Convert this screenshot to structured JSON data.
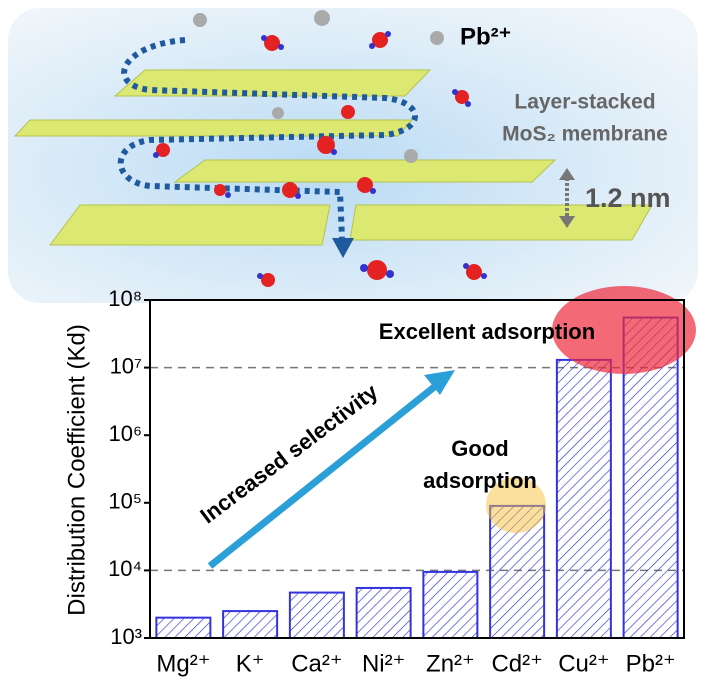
{
  "illustration": {
    "ion": "Pb²⁺",
    "membrane_line1": "Layer-stacked",
    "membrane_line2": "MoS₂ membrane",
    "spacing": "1.2 nm"
  },
  "chart_data": {
    "type": "bar",
    "y_label": "Distribution Coefficient (Kd)",
    "categories": [
      "Mg²⁺",
      "K⁺",
      "Ca²⁺",
      "Ni²⁺",
      "Zn²⁺",
      "Cd²⁺",
      "Cu²⁺",
      "Pb²⁺"
    ],
    "values": [
      2000,
      2500,
      4700,
      5500,
      9500,
      90000,
      13000000,
      55000000
    ],
    "color": "#3333dd",
    "log_scale": true,
    "ylim": [
      1000,
      100000000
    ],
    "yticks": [
      {
        "value": 1000,
        "label": "10³"
      },
      {
        "value": 10000,
        "label": "10⁴"
      },
      {
        "value": 100000,
        "label": "10⁵"
      },
      {
        "value": 1000000,
        "label": "10⁶"
      },
      {
        "value": 10000000,
        "label": "10⁷"
      },
      {
        "value": 100000000,
        "label": "10⁸"
      }
    ],
    "reference_lines": [
      10000,
      10000000
    ],
    "annotations": [
      "Excellent adsorption",
      "Good",
      "adsorption",
      "Increased selectivity"
    ]
  }
}
